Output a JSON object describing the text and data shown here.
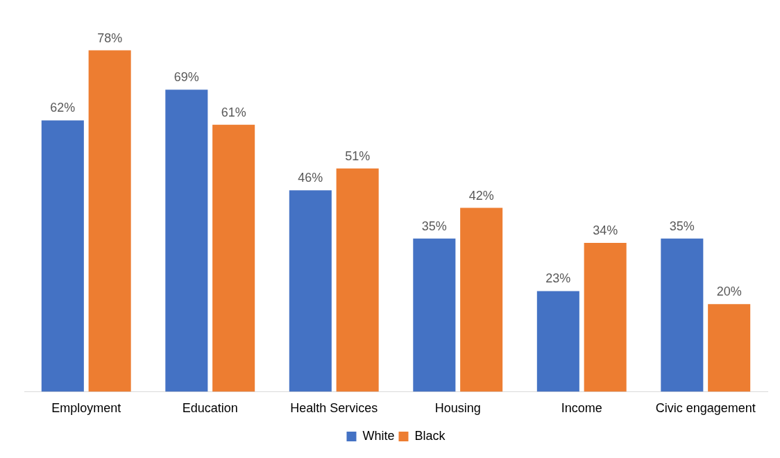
{
  "chart_data": {
    "type": "bar",
    "categories": [
      "Employment",
      "Education",
      "Health Services",
      "Housing",
      "Income",
      "Civic engagement"
    ],
    "series": [
      {
        "name": "White",
        "color": "#4472c4",
        "values": [
          62,
          69,
          46,
          35,
          23,
          35
        ],
        "value_labels": [
          "62%",
          "69%",
          "46%",
          "35%",
          "23%",
          "35%"
        ]
      },
      {
        "name": "Black",
        "color": "#ed7d31",
        "values": [
          78,
          61,
          51,
          42,
          34,
          20
        ],
        "value_labels": [
          "78%",
          "61%",
          "51%",
          "42%",
          "34%",
          "20%"
        ]
      }
    ],
    "legend": "bottom",
    "grid": false
  }
}
